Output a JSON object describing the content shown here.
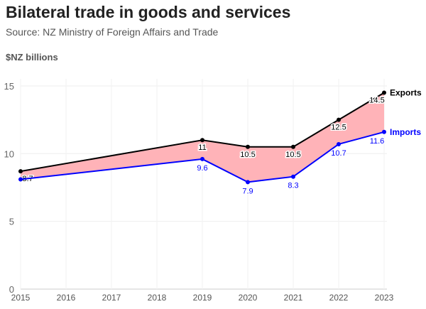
{
  "chart_data": {
    "type": "line",
    "title": "Bilateral trade in goods and services",
    "subtitle": "Source: NZ Ministry of Foreign Affairs and Trade",
    "ylabel": "$NZ billions",
    "ylim": [
      0,
      15
    ],
    "yticks": [
      0,
      5,
      10,
      15
    ],
    "xticks": [
      2015,
      2016,
      2017,
      2018,
      2019,
      2020,
      2021,
      2022,
      2023
    ],
    "grid": true,
    "fill_between": {
      "color": "#ffb3b8"
    },
    "series": [
      {
        "name": "Exports",
        "color": "#000000",
        "x": [
          2015,
          2019,
          2020,
          2021,
          2022,
          2023
        ],
        "values": [
          8.7,
          11,
          10.5,
          10.5,
          12.5,
          14.5
        ],
        "labels": [
          "8.7",
          "11",
          "10.5",
          "10.5",
          "12.5",
          "14.5"
        ]
      },
      {
        "name": "Imports",
        "color": "#0000ff",
        "x": [
          2015,
          2019,
          2020,
          2021,
          2022,
          2023
        ],
        "values": [
          8.1,
          9.6,
          7.9,
          8.3,
          10.7,
          11.6
        ],
        "labels": [
          "",
          "9.6",
          "7.9",
          "8.3",
          "10.7",
          "11.6"
        ]
      }
    ]
  }
}
